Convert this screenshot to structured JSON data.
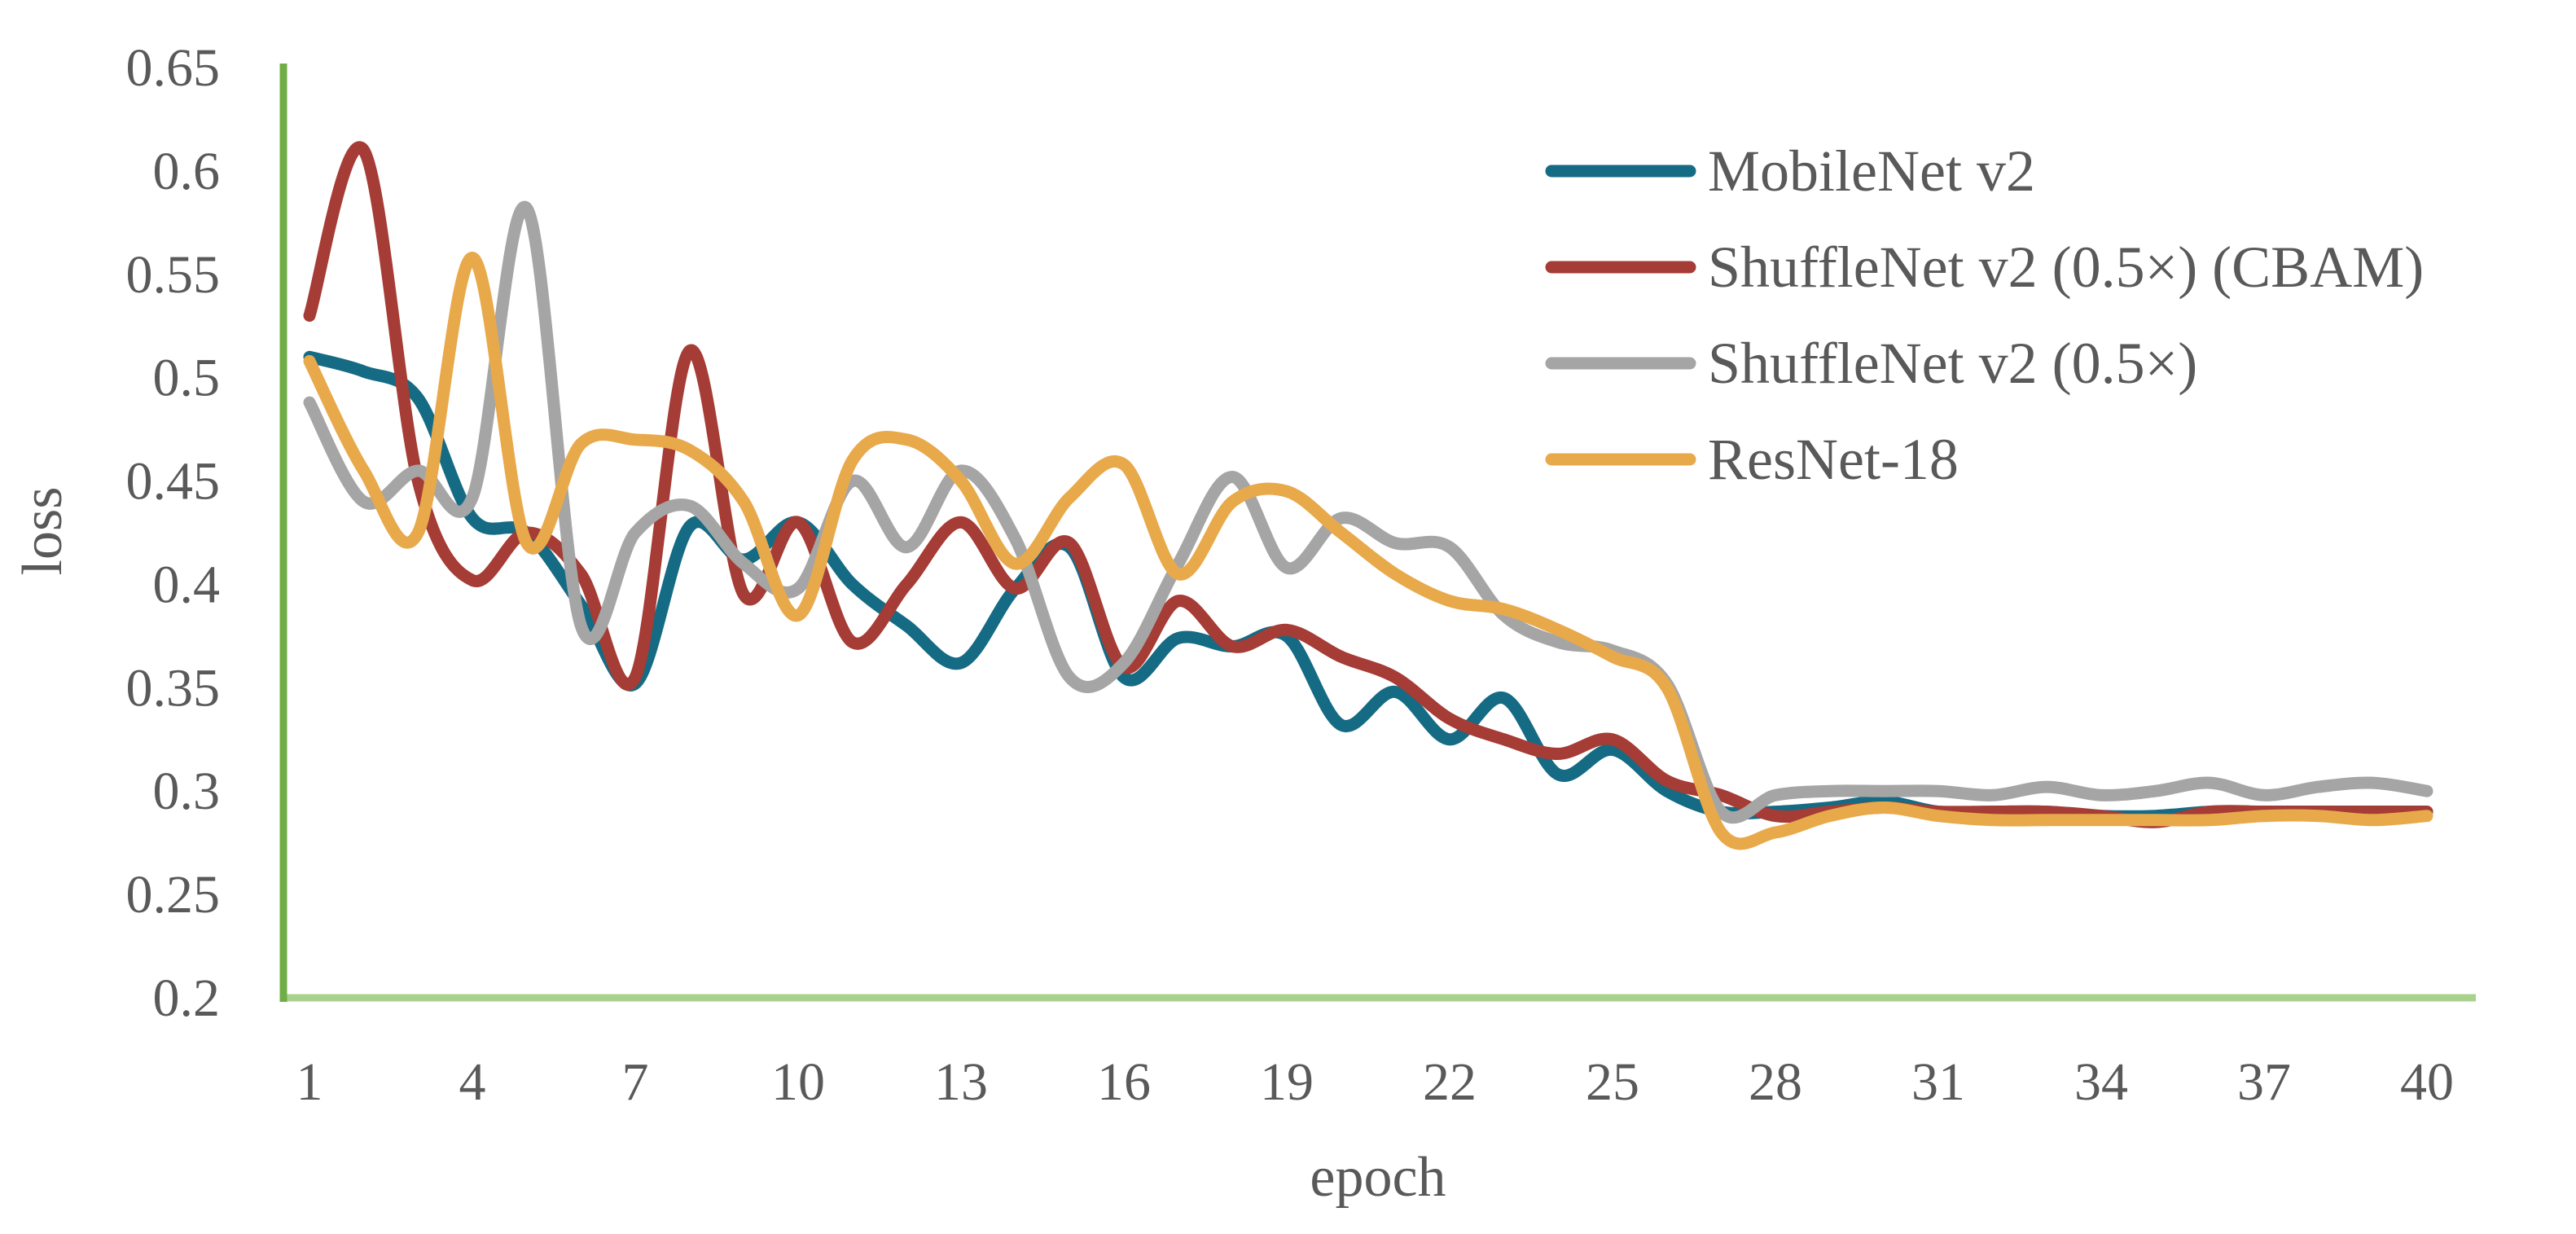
{
  "chart_data": {
    "type": "line",
    "title": "",
    "xlabel": "epoch",
    "ylabel": "loss",
    "ylim": [
      0.2,
      0.65
    ],
    "yticks": [
      "0.2",
      "0.25",
      "0.3",
      "0.35",
      "0.4",
      "0.45",
      "0.5",
      "0.55",
      "0.6",
      "0.65"
    ],
    "xticks": [
      "1",
      "4",
      "7",
      "10",
      "13",
      "16",
      "19",
      "22",
      "25",
      "28",
      "31",
      "34",
      "37",
      "40"
    ],
    "x": [
      1,
      2,
      3,
      4,
      5,
      6,
      7,
      8,
      9,
      10,
      11,
      12,
      13,
      14,
      15,
      16,
      17,
      18,
      19,
      20,
      21,
      22,
      23,
      24,
      25,
      26,
      27,
      28,
      29,
      30,
      31,
      32,
      33,
      34,
      35,
      36,
      37,
      38,
      39,
      40
    ],
    "legend_position": "top-right",
    "colors": {
      "x_axis": "#a9d18e",
      "y_axis": "#70ad47"
    },
    "series": [
      {
        "name": "MobileNet v2",
        "color": "#156b84",
        "values": [
          0.51,
          0.503,
          0.49,
          0.432,
          0.425,
          0.39,
          0.352,
          0.428,
          0.412,
          0.43,
          0.4,
          0.38,
          0.362,
          0.398,
          0.418,
          0.355,
          0.374,
          0.37,
          0.375,
          0.332,
          0.348,
          0.325,
          0.345,
          0.308,
          0.32,
          0.3,
          0.29,
          0.29,
          0.292,
          0.295,
          0.29,
          0.29,
          0.29,
          0.288,
          0.288,
          0.29,
          0.29,
          0.29,
          0.29,
          0.29
        ]
      },
      {
        "name": "ShuffleNet v2 (0.5×) (CBAM)",
        "color": "#a53c35",
        "values": [
          0.53,
          0.61,
          0.45,
          0.402,
          0.425,
          0.405,
          0.355,
          0.513,
          0.395,
          0.43,
          0.372,
          0.4,
          0.43,
          0.398,
          0.42,
          0.36,
          0.392,
          0.37,
          0.378,
          0.365,
          0.355,
          0.335,
          0.325,
          0.318,
          0.325,
          0.305,
          0.298,
          0.288,
          0.29,
          0.292,
          0.29,
          0.29,
          0.29,
          0.288,
          0.285,
          0.29,
          0.29,
          0.29,
          0.29,
          0.29
        ]
      },
      {
        "name": "ShuffleNet v2 (0.5×)",
        "color": "#a5a5a5",
        "values": [
          0.488,
          0.44,
          0.455,
          0.442,
          0.582,
          0.38,
          0.425,
          0.438,
          0.41,
          0.398,
          0.45,
          0.418,
          0.455,
          0.422,
          0.355,
          0.362,
          0.41,
          0.452,
          0.408,
          0.432,
          0.42,
          0.418,
          0.385,
          0.372,
          0.368,
          0.352,
          0.29,
          0.298,
          0.3,
          0.3,
          0.3,
          0.298,
          0.302,
          0.298,
          0.3,
          0.304,
          0.298,
          0.302,
          0.304,
          0.3
        ]
      },
      {
        "name": "ResNet-18",
        "color": "#e8a94b",
        "values": [
          0.508,
          0.455,
          0.425,
          0.558,
          0.42,
          0.468,
          0.47,
          0.465,
          0.44,
          0.385,
          0.46,
          0.47,
          0.45,
          0.41,
          0.442,
          0.458,
          0.405,
          0.44,
          0.445,
          0.425,
          0.405,
          0.392,
          0.388,
          0.378,
          0.365,
          0.35,
          0.28,
          0.28,
          0.288,
          0.292,
          0.288,
          0.286,
          0.286,
          0.286,
          0.286,
          0.286,
          0.288,
          0.288,
          0.286,
          0.288
        ]
      }
    ]
  }
}
